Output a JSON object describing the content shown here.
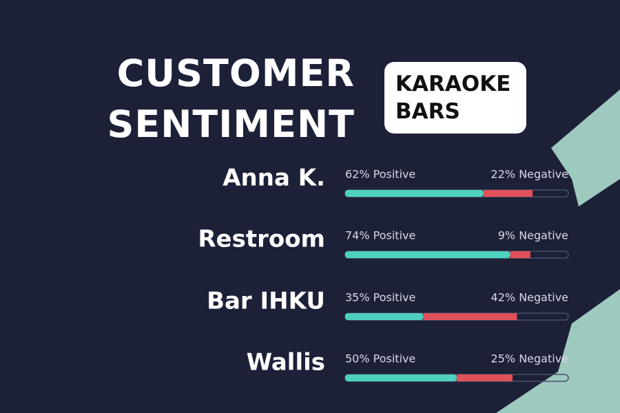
{
  "chart_data": {
    "type": "stacked-bar-horizontal",
    "title": "CUSTOMER SENTIMENT",
    "subtitle": "KARAOKE BARS",
    "categories": [
      "Anna K.",
      "Restroom",
      "Bar IHKU",
      "Wallis"
    ],
    "xlim": [
      0,
      100
    ],
    "series": [
      {
        "color": "#4fd1c0",
        "values": [
          62,
          74,
          35,
          50
        ],
        "value_labels": [
          "62% Positive",
          "74% Positive",
          "35% Positive",
          "50% Positive"
        ]
      },
      {
        "color": "#e0505a",
        "values": [
          22,
          9,
          42,
          25
        ],
        "value_labels": [
          "22% Negative",
          "9% Negative",
          "42% Negative",
          "25% Negative"
        ]
      }
    ]
  }
}
